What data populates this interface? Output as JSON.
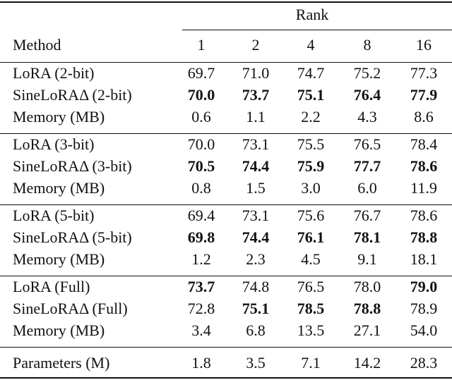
{
  "table": {
    "header": {
      "span_label": "Rank",
      "method": "Method",
      "ranks": [
        "1",
        "2",
        "4",
        "8",
        "16"
      ]
    },
    "groups": [
      [
        {
          "label": "LoRA (2-bit)",
          "values": [
            "69.7",
            "71.0",
            "74.7",
            "75.2",
            "77.3"
          ],
          "bold": [
            false,
            false,
            false,
            false,
            false
          ]
        },
        {
          "label": "SineLoRAΔ (2-bit)",
          "values": [
            "70.0",
            "73.7",
            "75.1",
            "76.4",
            "77.9"
          ],
          "bold": [
            true,
            true,
            true,
            true,
            true
          ]
        },
        {
          "label": "Memory (MB)",
          "values": [
            "0.6",
            "1.1",
            "2.2",
            "4.3",
            "8.6"
          ],
          "bold": [
            false,
            false,
            false,
            false,
            false
          ]
        }
      ],
      [
        {
          "label": "LoRA (3-bit)",
          "values": [
            "70.0",
            "73.1",
            "75.5",
            "76.5",
            "78.4"
          ],
          "bold": [
            false,
            false,
            false,
            false,
            false
          ]
        },
        {
          "label": "SineLoRAΔ (3-bit)",
          "values": [
            "70.5",
            "74.4",
            "75.9",
            "77.7",
            "78.6"
          ],
          "bold": [
            true,
            true,
            true,
            true,
            true
          ]
        },
        {
          "label": "Memory (MB)",
          "values": [
            "0.8",
            "1.5",
            "3.0",
            "6.0",
            "11.9"
          ],
          "bold": [
            false,
            false,
            false,
            false,
            false
          ]
        }
      ],
      [
        {
          "label": "LoRA (5-bit)",
          "values": [
            "69.4",
            "73.1",
            "75.6",
            "76.7",
            "78.6"
          ],
          "bold": [
            false,
            false,
            false,
            false,
            false
          ]
        },
        {
          "label": "SineLoRAΔ (5-bit)",
          "values": [
            "69.8",
            "74.4",
            "76.1",
            "78.1",
            "78.8"
          ],
          "bold": [
            true,
            true,
            true,
            true,
            true
          ]
        },
        {
          "label": "Memory (MB)",
          "values": [
            "1.2",
            "2.3",
            "4.5",
            "9.1",
            "18.1"
          ],
          "bold": [
            false,
            false,
            false,
            false,
            false
          ]
        }
      ],
      [
        {
          "label": "LoRA (Full)",
          "values": [
            "73.7",
            "74.8",
            "76.5",
            "78.0",
            "79.0"
          ],
          "bold": [
            true,
            false,
            false,
            false,
            true
          ]
        },
        {
          "label": "SineLoRAΔ (Full)",
          "values": [
            "72.8",
            "75.1",
            "78.5",
            "78.8",
            "78.9"
          ],
          "bold": [
            false,
            true,
            true,
            true,
            false
          ]
        },
        {
          "label": "Memory (MB)",
          "values": [
            "3.4",
            "6.8",
            "13.5",
            "27.1",
            "54.0"
          ],
          "bold": [
            false,
            false,
            false,
            false,
            false
          ]
        }
      ]
    ],
    "footer": {
      "label": "Parameters (M)",
      "values": [
        "1.8",
        "3.5",
        "7.1",
        "14.2",
        "28.3"
      ]
    }
  }
}
